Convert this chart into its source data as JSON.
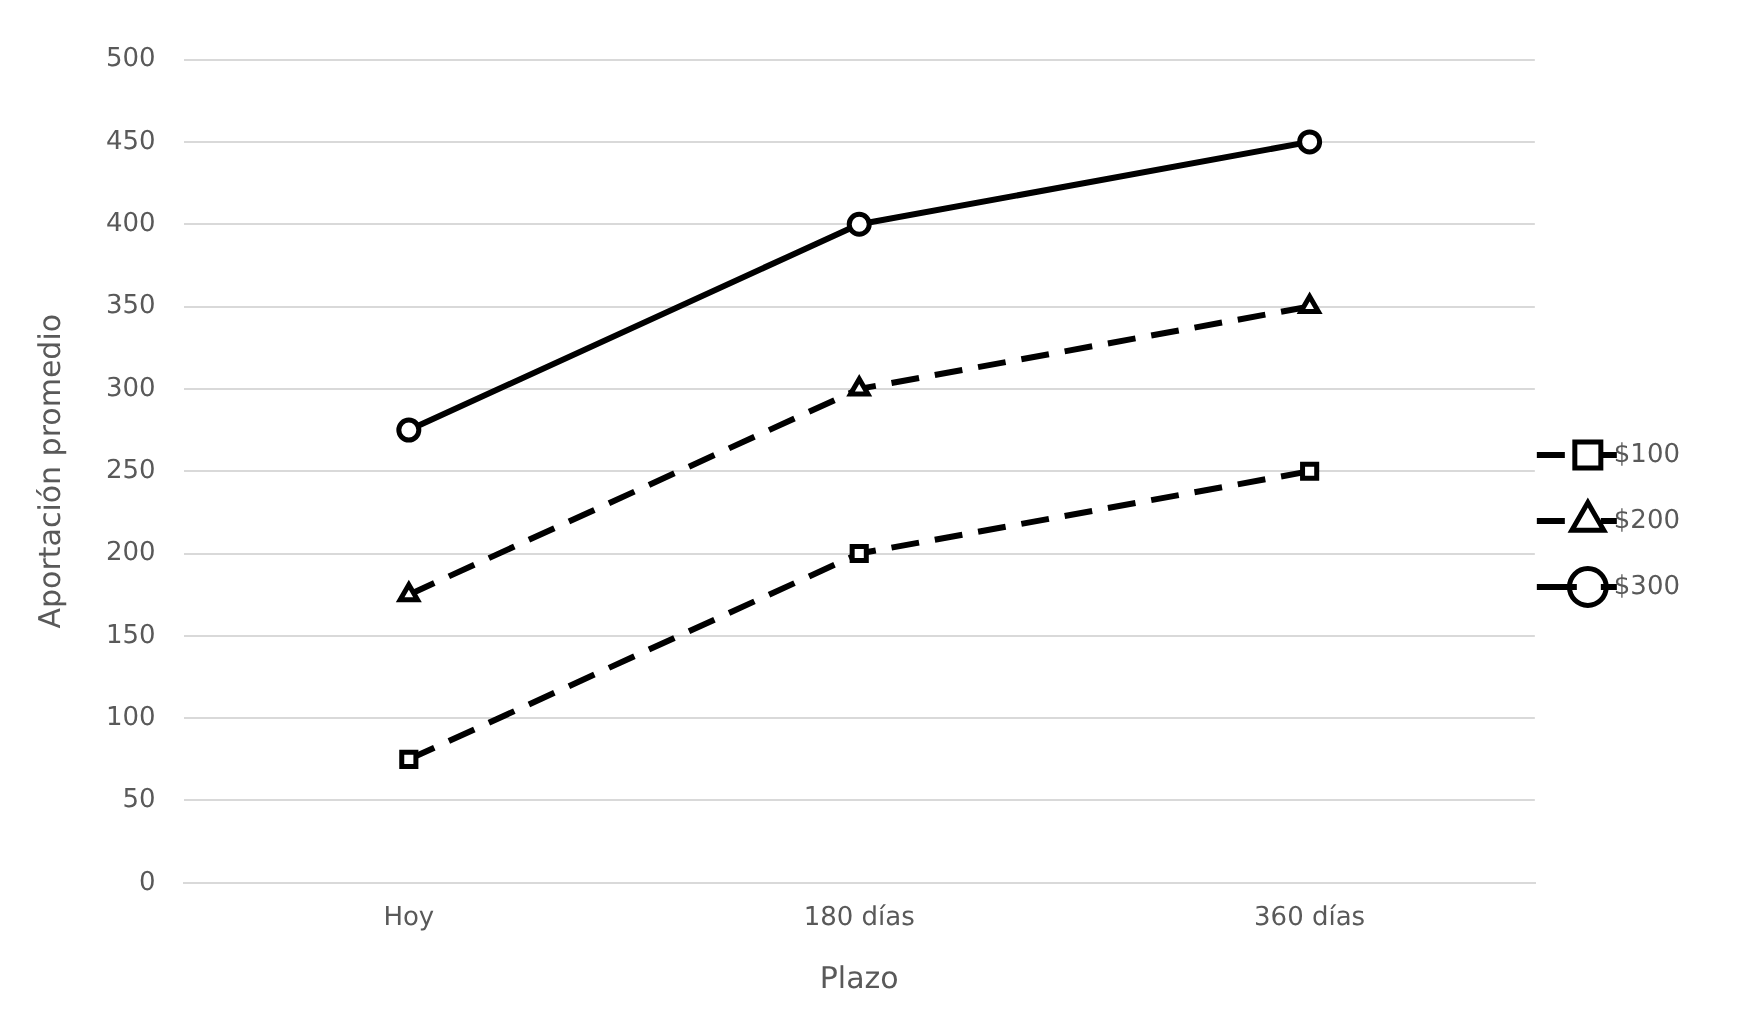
{
  "chart_data": {
    "type": "line",
    "xlabel": "Plazo",
    "ylabel": "Aportación promedio",
    "categories": [
      "Hoy",
      "180 días",
      "360 días"
    ],
    "series": [
      {
        "name": "$100",
        "color": "#000000",
        "values": [
          75,
          200,
          250
        ],
        "marker": "square",
        "line_style": "dashed"
      },
      {
        "name": "$200",
        "color": "#000000",
        "values": [
          175,
          300,
          350
        ],
        "marker": "triangle",
        "line_style": "dashed"
      },
      {
        "name": "$300",
        "color": "#000000",
        "values": [
          275,
          400,
          450
        ],
        "marker": "circle",
        "line_style": "solid"
      }
    ],
    "ylim": [
      0,
      500
    ],
    "yticks": [
      0,
      50,
      100,
      150,
      200,
      250,
      300,
      350,
      400,
      450,
      500
    ],
    "grid": "y",
    "legend": "right"
  }
}
